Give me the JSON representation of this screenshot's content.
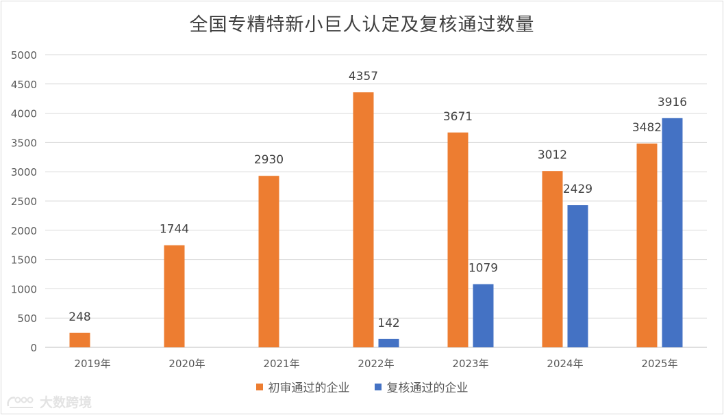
{
  "chart_data": {
    "type": "bar",
    "title": "全国专精特新小巨人认定及复核通过数量",
    "categories": [
      "2019年",
      "2020年",
      "2021年",
      "2022年",
      "2023年",
      "2024年",
      "2025年"
    ],
    "series": [
      {
        "name": "初审通过的企业",
        "color": "#ed7d31",
        "values": [
          248,
          1744,
          2930,
          4357,
          3671,
          3012,
          3482
        ]
      },
      {
        "name": "复核通过的企业",
        "color": "#4472c4",
        "values": [
          null,
          null,
          null,
          142,
          1079,
          2429,
          3916
        ]
      }
    ],
    "ylim": [
      0,
      5000
    ],
    "yticks": [
      0,
      500,
      1000,
      1500,
      2000,
      2500,
      3000,
      3500,
      4000,
      4500,
      5000
    ],
    "grid": true,
    "legend": "bottom"
  },
  "watermark": {
    "text": "大数跨境",
    "icon": "watermark-logo-icon"
  }
}
